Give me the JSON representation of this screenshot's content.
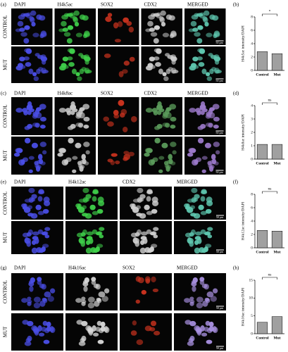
{
  "micrographs": [
    {
      "label": "(a)",
      "columns": [
        "DAPI",
        "H4k5ac",
        "SOX2",
        "CDX2",
        "MERGED"
      ],
      "channel_colors": [
        "#4a4ee6",
        "#3fd04a",
        "#c8321e",
        "#d0d0d0",
        "#5fc8b0"
      ],
      "rows": [
        "CONTROL",
        "MUT"
      ],
      "scale_bar": "50 μm"
    },
    {
      "label": "(c)",
      "columns": [
        "DAPI",
        "H4k8ac",
        "SOX2",
        "CDX2",
        "MERGED"
      ],
      "channel_colors": [
        "#4a4ee6",
        "#c8c8c8",
        "#c8321e",
        "#5a9a5a",
        "#9a78c8"
      ],
      "rows": [
        "CONTROL",
        "MUT"
      ],
      "scale_bar": "50 μm"
    },
    {
      "label": "(e)",
      "columns": [
        "DAPI",
        "H4k12ac",
        "CDX2",
        "MERGED"
      ],
      "channel_colors": [
        "#4a4ee6",
        "#3fd04a",
        "#d0d0d0",
        "#5fc8b0"
      ],
      "rows": [
        "CONTROL",
        "MUT"
      ],
      "scale_bar": "50 μm"
    },
    {
      "label": "(g)",
      "columns": [
        "DAPI",
        "H4k16ac",
        "SOX2",
        "MERGED"
      ],
      "channel_colors": [
        "#4a4ee6",
        "#d8d8d8",
        "#c8321e",
        "#a890e0"
      ],
      "rows": [
        "CONTROL",
        "MUT"
      ],
      "scale_bar": "50 μm"
    }
  ],
  "chart_data": [
    {
      "type": "bar",
      "panel_label": "(b)",
      "ylabel": "H4k5ac intensity/DAPI",
      "categories": [
        "Control",
        "Mut"
      ],
      "values": [
        2.8,
        2.5
      ],
      "ylim": [
        0,
        8
      ],
      "yticks": [
        0,
        2,
        4,
        6,
        8
      ],
      "annotation": "*",
      "color": "#a0a0a0"
    },
    {
      "type": "bar",
      "panel_label": "(d)",
      "ylabel": "H4k8ac intensity/DAPI",
      "categories": [
        "Control",
        "Mut"
      ],
      "values": [
        1.1,
        1.1
      ],
      "ylim": [
        0,
        4
      ],
      "yticks": [
        0,
        1,
        2,
        3,
        4
      ],
      "annotation": "ns",
      "color": "#a0a0a0"
    },
    {
      "type": "bar",
      "panel_label": "(f)",
      "ylabel": "H4k12ac intensity/DAPI",
      "categories": [
        "Control",
        "Mut"
      ],
      "values": [
        2.6,
        2.5
      ],
      "ylim": [
        0,
        8
      ],
      "yticks": [
        0,
        2,
        4,
        6,
        8
      ],
      "annotation": "ns",
      "color": "#a0a0a0"
    },
    {
      "type": "bar",
      "panel_label": "(h)",
      "ylabel": "H4k16ac intensity/DAPI",
      "categories": [
        "Control",
        "Mut"
      ],
      "values": [
        3.2,
        4.8
      ],
      "ylim": [
        0,
        15
      ],
      "yticks": [
        0,
        5,
        10,
        15
      ],
      "annotation": "ns",
      "color": "#a0a0a0"
    }
  ]
}
